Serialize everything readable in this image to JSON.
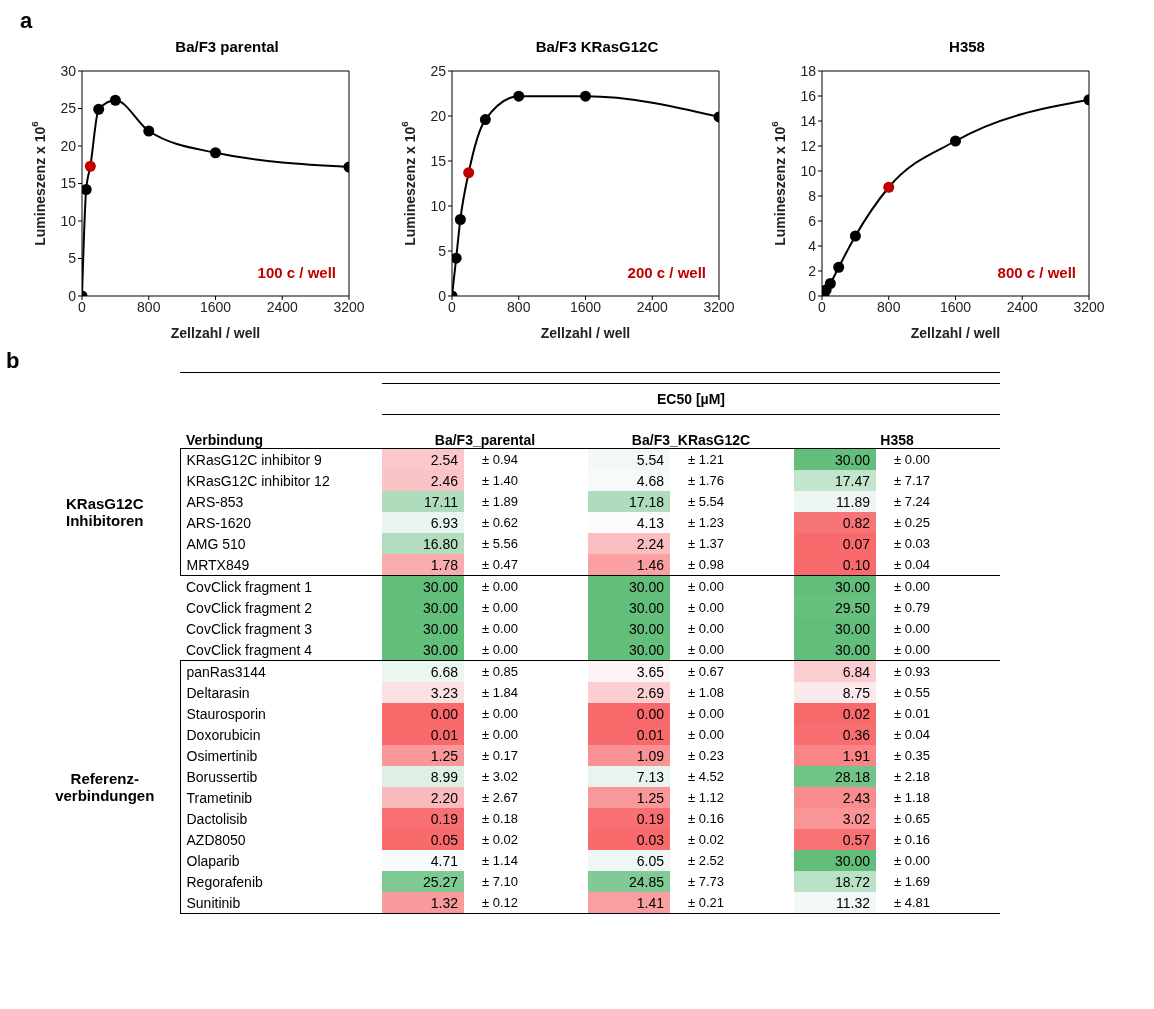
{
  "chart_data": [
    {
      "type": "line",
      "title": "Ba/F3 parental",
      "xlabel": "Zellzahl / well",
      "ylabel": "Lumineszenz x 10$^{6}$",
      "annotations": [
        "a",
        "100 c / well"
      ],
      "marker": "circle",
      "xlim": [
        0,
        3200
      ],
      "xticks": [
        0,
        800,
        1600,
        2400,
        3200
      ],
      "ylim": [
        0,
        30
      ],
      "yticks": [
        0,
        5,
        10,
        15,
        20,
        25,
        30
      ],
      "series": [
        {
          "color": "#000000",
          "x": [
            0,
            50,
            100,
            200,
            400,
            800,
            1600,
            3200
          ],
          "values": [
            0,
            14.2,
            17.3,
            24.9,
            26.1,
            22.0,
            19.1,
            17.2
          ],
          "colors": [
            "#000000",
            "#000000",
            "#c00000",
            "#000000",
            "#000000",
            "#000000",
            "#000000",
            "#000000"
          ]
        }
      ]
    },
    {
      "type": "line",
      "title": "Ba/F3 KRasG12C",
      "xlabel": "Zellzahl / well",
      "ylabel": "Lumineszenz x 10$^{6}$",
      "annotations": [
        "200 c / well"
      ],
      "marker": "circle",
      "xlim": [
        0,
        3200
      ],
      "xticks": [
        0,
        800,
        1600,
        2400,
        3200
      ],
      "ylim": [
        0,
        25
      ],
      "yticks": [
        0,
        5,
        10,
        15,
        20,
        25
      ],
      "series": [
        {
          "color": "#000000",
          "x": [
            0,
            50,
            100,
            200,
            400,
            800,
            1600,
            3200
          ],
          "values": [
            0,
            4.2,
            8.5,
            13.7,
            19.6,
            22.2,
            22.2,
            19.9
          ],
          "colors": [
            "#000000",
            "#000000",
            "#000000",
            "#c00000",
            "#000000",
            "#000000",
            "#000000",
            "#000000"
          ]
        }
      ]
    },
    {
      "type": "line",
      "title": "H358",
      "xlabel": "Zellzahl / well",
      "ylabel": "Lumineszenz x 10$^{6}$",
      "annotations": [
        "800 c / well"
      ],
      "marker": "circle",
      "xlim": [
        0,
        3200
      ],
      "xticks": [
        0,
        800,
        1600,
        2400,
        3200
      ],
      "ylim": [
        0,
        18
      ],
      "yticks": [
        0,
        2,
        4,
        6,
        8,
        10,
        12,
        14,
        16,
        18
      ],
      "series": [
        {
          "color": "#000000",
          "x": [
            0,
            25,
            50,
            100,
            200,
            400,
            800,
            1600,
            3200
          ],
          "values": [
            0,
            0.2,
            0.5,
            1.0,
            2.3,
            4.8,
            8.7,
            12.4,
            15.7
          ],
          "colors": [
            "#000000",
            "#000000",
            "#000000",
            "#000000",
            "#000000",
            "#000000",
            "#c00000",
            "#000000",
            "#000000"
          ]
        }
      ]
    },
    {
      "type": "heatmap",
      "title": "EC50 [µM]",
      "ylabel": "Verbindung",
      "data_labels": true,
      "annotations": [
        "b",
        "KRasG12C Inhibitoren",
        "Referenz-verbindungen",
        "± 0.94",
        "± 1.21",
        "± 0.00",
        "± 1.40",
        "± 1.76",
        "± 7.17",
        "± 1.89",
        "± 5.54",
        "± 7.24",
        "± 0.62",
        "± 1.23",
        "± 0.25",
        "± 5.56",
        "± 1.37",
        "± 0.03",
        "± 0.47",
        "± 0.98",
        "± 0.04",
        "± 0.00",
        "± 0.00",
        "± 0.00",
        "± 0.00",
        "± 0.00",
        "± 0.79",
        "± 0.00",
        "± 0.00",
        "± 0.00",
        "± 0.00",
        "± 0.00",
        "± 0.00",
        "± 0.85",
        "± 0.67",
        "± 0.93",
        "± 1.84",
        "± 1.08",
        "± 0.55",
        "± 0.00",
        "± 0.00",
        "± 0.01",
        "± 0.00",
        "± 0.00",
        "± 0.04",
        "± 0.17",
        "± 0.23",
        "± 0.35",
        "± 3.02",
        "± 4.52",
        "± 2.18",
        "± 2.67",
        "± 1.12",
        "± 1.18",
        "± 0.18",
        "± 0.16",
        "± 0.65",
        "± 0.02",
        "± 0.02",
        "± 0.16",
        "± 1.14",
        "± 2.52",
        "± 0.00",
        "± 7.10",
        "± 7.73",
        "± 1.69",
        "± 0.12",
        "± 0.21",
        "± 4.81"
      ],
      "categories": [
        "Ba/F3_parental",
        "Ba/F3_KRasG12C",
        "H358"
      ],
      "y_categories": [
        "KRasG12C inhibitor 9",
        "KRasG12C inhibitor 12",
        "ARS-853",
        "ARS-1620",
        "AMG 510",
        "MRTX849",
        "CovClick fragment 1",
        "CovClick fragment 2",
        "CovClick fragment 3",
        "CovClick fragment 4",
        "panRas3144",
        "Deltarasin",
        "Staurosporin",
        "Doxorubicin",
        "Osimertinib",
        "Borussertib",
        "Trametinib",
        "Dactolisib",
        "AZD8050",
        "Olaparib",
        "Regorafenib",
        "Sunitinib"
      ],
      "cells": [
        [
          2.54,
          5.54,
          30.0
        ],
        [
          2.46,
          4.68,
          17.47
        ],
        [
          17.11,
          17.18,
          11.89
        ],
        [
          6.93,
          4.13,
          0.82
        ],
        [
          16.8,
          2.24,
          0.07
        ],
        [
          1.78,
          1.46,
          0.1
        ],
        [
          30.0,
          30.0,
          30.0
        ],
        [
          30.0,
          30.0,
          29.5
        ],
        [
          30.0,
          30.0,
          30.0
        ],
        [
          30.0,
          30.0,
          30.0
        ],
        [
          6.68,
          3.65,
          6.84
        ],
        [
          3.23,
          2.69,
          8.75
        ],
        [
          0.0,
          0.0,
          0.02
        ],
        [
          0.01,
          0.01,
          0.36
        ],
        [
          1.25,
          1.09,
          1.91
        ],
        [
          8.99,
          7.13,
          28.18
        ],
        [
          2.2,
          1.25,
          2.43
        ],
        [
          0.19,
          0.19,
          3.02
        ],
        [
          0.05,
          0.03,
          0.57
        ],
        [
          4.71,
          6.05,
          30.0
        ],
        [
          25.27,
          24.85,
          18.72
        ],
        [
          1.32,
          1.41,
          11.32
        ]
      ],
      "cell_labels": [
        [
          "2.54",
          "5.54",
          "30.00"
        ],
        [
          "2.46",
          "4.68",
          "17.47"
        ],
        [
          "17.11",
          "17.18",
          "11.89"
        ],
        [
          "6.93",
          "4.13",
          "0.82"
        ],
        [
          "16.80",
          "2.24",
          "0.07"
        ],
        [
          "1.78",
          "1.46",
          "0.10"
        ],
        [
          "30.00",
          "30.00",
          "30.00"
        ],
        [
          "30.00",
          "30.00",
          "29.50"
        ],
        [
          "30.00",
          "30.00",
          "30.00"
        ],
        [
          "30.00",
          "30.00",
          "30.00"
        ],
        [
          "6.68",
          "3.65",
          "6.84"
        ],
        [
          "3.23",
          "2.69",
          "8.75"
        ],
        [
          "0.00",
          "0.00",
          "0.02"
        ],
        [
          "0.01",
          "0.01",
          "0.36"
        ],
        [
          "1.25",
          "1.09",
          "1.91"
        ],
        [
          "8.99",
          "7.13",
          "28.18"
        ],
        [
          "2.20",
          "1.25",
          "2.43"
        ],
        [
          "0.19",
          "0.19",
          "3.02"
        ],
        [
          "0.05",
          "0.03",
          "0.57"
        ],
        [
          "4.71",
          "6.05",
          "30.00"
        ],
        [
          "25.27",
          "24.85",
          "18.72"
        ],
        [
          "1.32",
          "1.41",
          "11.32"
        ]
      ]
    }
  ]
}
